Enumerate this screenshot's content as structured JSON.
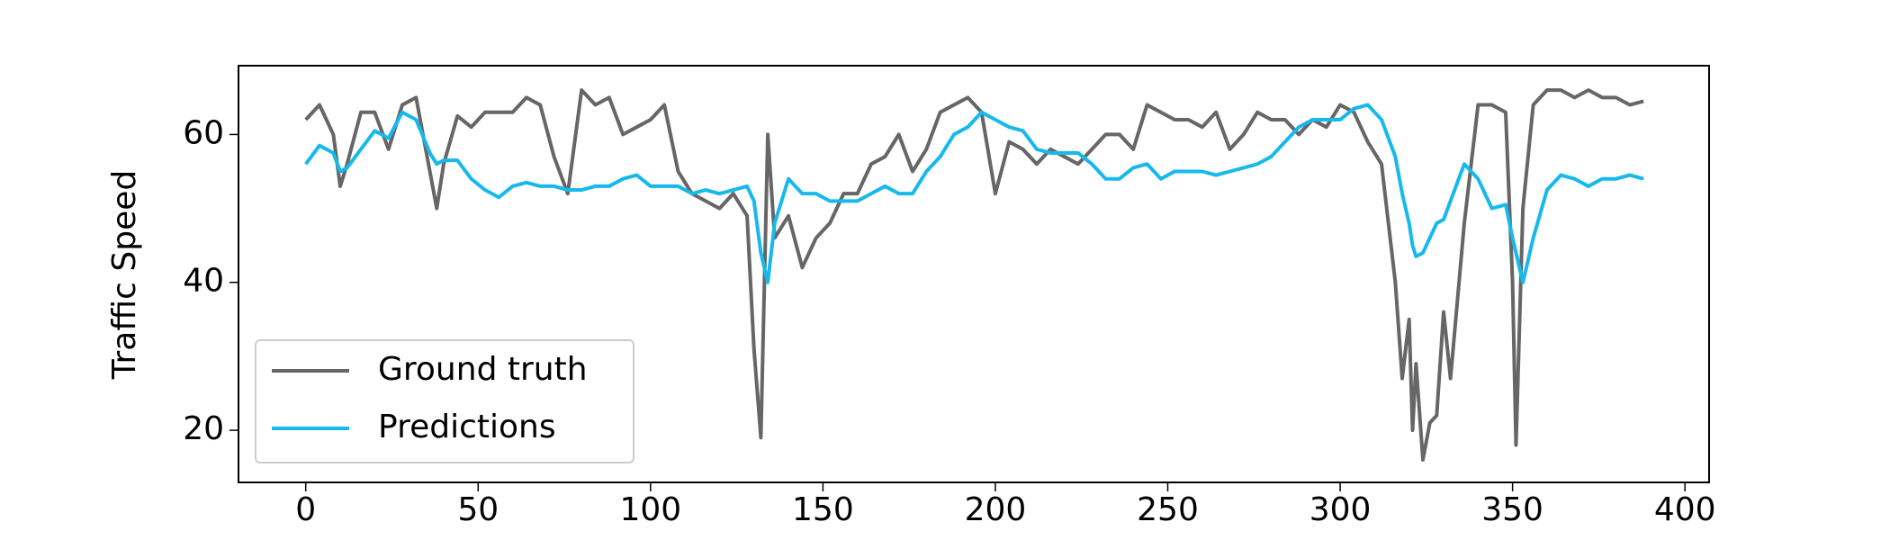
{
  "chart_data": {
    "type": "line",
    "ylabel": "Traffic Speed",
    "x": [
      0,
      4,
      8,
      10,
      12,
      16,
      20,
      24,
      28,
      32,
      36,
      38,
      40,
      44,
      48,
      52,
      56,
      60,
      64,
      68,
      72,
      76,
      80,
      84,
      88,
      92,
      96,
      100,
      104,
      108,
      112,
      116,
      120,
      124,
      128,
      130,
      132,
      134,
      136,
      140,
      144,
      148,
      152,
      156,
      160,
      164,
      168,
      172,
      176,
      180,
      184,
      188,
      192,
      196,
      200,
      204,
      208,
      212,
      216,
      220,
      224,
      228,
      232,
      236,
      240,
      244,
      248,
      252,
      256,
      260,
      264,
      268,
      272,
      276,
      280,
      284,
      288,
      292,
      296,
      300,
      304,
      308,
      312,
      316,
      318,
      320,
      321,
      322,
      324,
      326,
      328,
      330,
      332,
      336,
      340,
      344,
      348,
      350,
      351,
      353,
      356,
      360,
      364,
      368,
      372,
      376,
      380,
      384,
      388
    ],
    "series": [
      {
        "name": "Ground truth",
        "color": "#666666",
        "values": [
          62,
          64,
          60,
          53,
          56,
          63,
          63,
          58,
          64,
          65,
          55,
          50,
          56,
          62.5,
          61,
          63,
          63,
          63,
          65,
          64,
          57,
          52,
          66,
          64,
          65,
          60,
          61,
          62,
          64,
          55,
          52,
          51,
          50,
          52,
          49,
          31,
          19,
          60,
          46,
          49,
          42,
          46,
          48,
          52,
          52,
          56,
          57,
          60,
          55,
          58,
          63,
          64,
          65,
          63,
          52,
          59,
          58,
          56,
          58,
          57,
          56,
          58,
          60,
          60,
          58,
          64,
          63,
          62,
          62,
          61,
          63,
          58,
          60,
          63,
          62,
          62,
          60,
          62,
          61,
          64,
          63,
          59,
          56,
          40,
          27,
          35,
          20,
          29,
          16,
          21,
          22,
          36,
          27,
          48,
          64,
          64,
          63,
          40,
          18,
          50,
          64,
          66,
          66,
          65,
          66,
          65,
          65,
          64,
          64.5
        ]
      },
      {
        "name": "Predictions",
        "color": "#17b9ec",
        "values": [
          56,
          58.5,
          57.5,
          55,
          55.5,
          58,
          60.5,
          59.5,
          63,
          62,
          57.5,
          56,
          56.5,
          56.5,
          54,
          52.5,
          51.5,
          53,
          53.5,
          53,
          53,
          52.5,
          52.5,
          53,
          53,
          54,
          54.5,
          53,
          53,
          53,
          52,
          52.5,
          52,
          52.5,
          53,
          51,
          44,
          40,
          48,
          54,
          52,
          52,
          51,
          51,
          51,
          52,
          53,
          52,
          52,
          55,
          57,
          60,
          61,
          63,
          62,
          61,
          60.5,
          58,
          57.5,
          57.5,
          57.5,
          56,
          54,
          54,
          55.5,
          56,
          54,
          55,
          55,
          55,
          54.5,
          55,
          55.5,
          56,
          57,
          59,
          61,
          62,
          62,
          62,
          63.5,
          64,
          62,
          57,
          52,
          48,
          45,
          43.5,
          44,
          46,
          48,
          48.5,
          51,
          56,
          54,
          50,
          50.5,
          46,
          44,
          40,
          46,
          52.5,
          54.5,
          54,
          53,
          54,
          54,
          54.5,
          54
        ]
      }
    ],
    "xlim": [
      -19.5,
      407
    ],
    "ylim": [
      12.95,
      69.3
    ],
    "xticks": [
      0,
      50,
      100,
      150,
      200,
      250,
      300,
      350,
      400
    ],
    "yticks": [
      20,
      40,
      60
    ],
    "legend": "lower left"
  }
}
